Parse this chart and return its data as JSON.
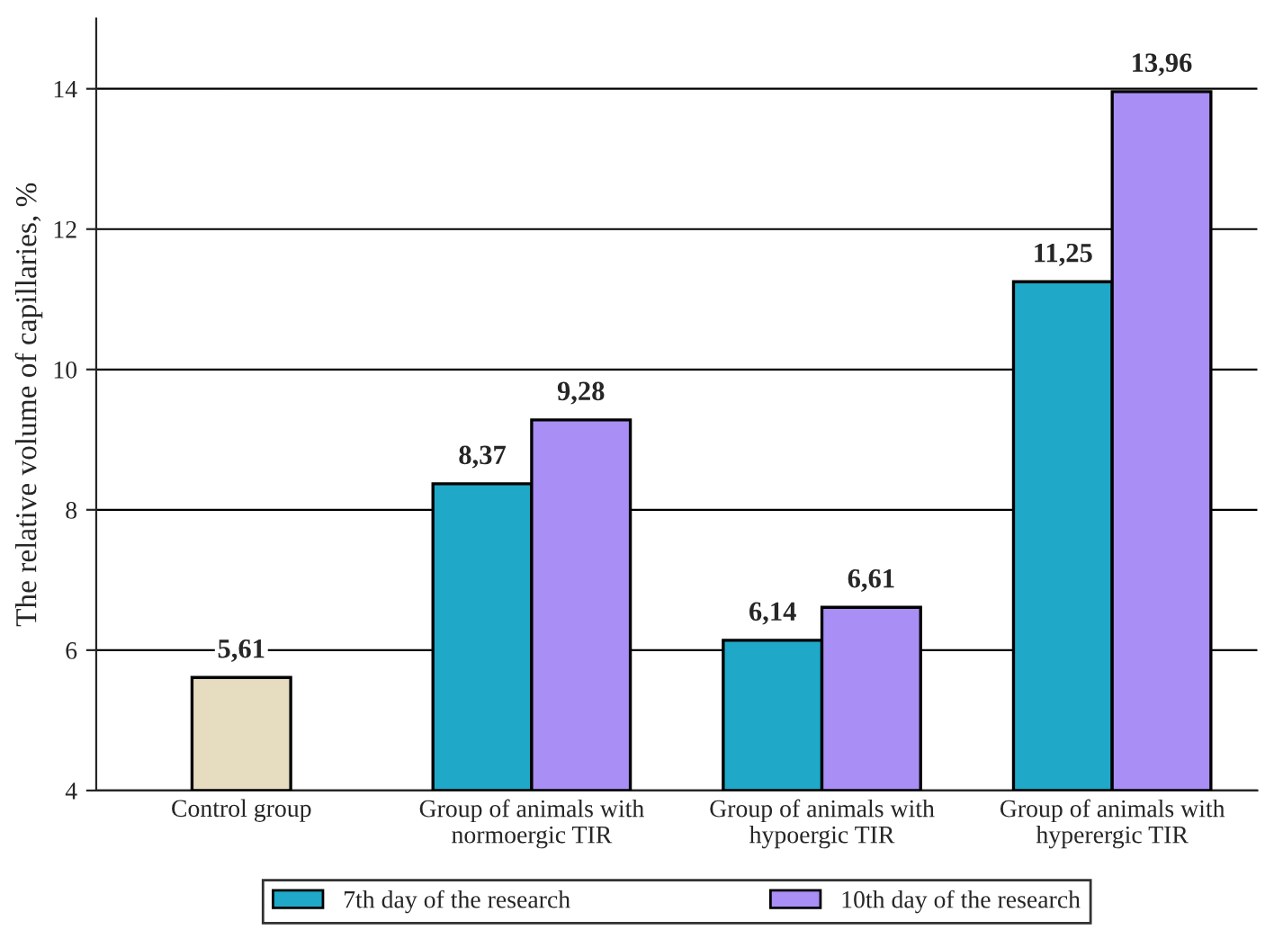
{
  "chart_data": {
    "type": "bar",
    "ylabel": "The relative volume of capillaries, %",
    "categories": [
      "Control group",
      "Group of animals with\nnormoergic TIR",
      "Group of animals with\nhypoergic TIR",
      "Group of animals with\nhyperergic TIR"
    ],
    "series": [
      {
        "color": "#e6dcc0",
        "values": [
          5.61,
          null,
          null,
          null
        ],
        "value_labels": [
          "5,61",
          null,
          null,
          null
        ]
      },
      {
        "name": "7th day of the research",
        "color": "#1fa8c8",
        "values": [
          null,
          8.37,
          6.14,
          11.25
        ],
        "value_labels": [
          null,
          "8,37",
          "6,14",
          "11,25"
        ]
      },
      {
        "name": "10th day of the research",
        "color": "#a88ef5",
        "values": [
          null,
          9.28,
          6.61,
          13.96
        ],
        "value_labels": [
          null,
          "9,28",
          "6,61",
          "13,96"
        ]
      }
    ],
    "ylim": [
      4,
      15
    ],
    "yticks": [
      4,
      6,
      8,
      10,
      12,
      14
    ],
    "grid": "y",
    "legend": "bottom"
  }
}
